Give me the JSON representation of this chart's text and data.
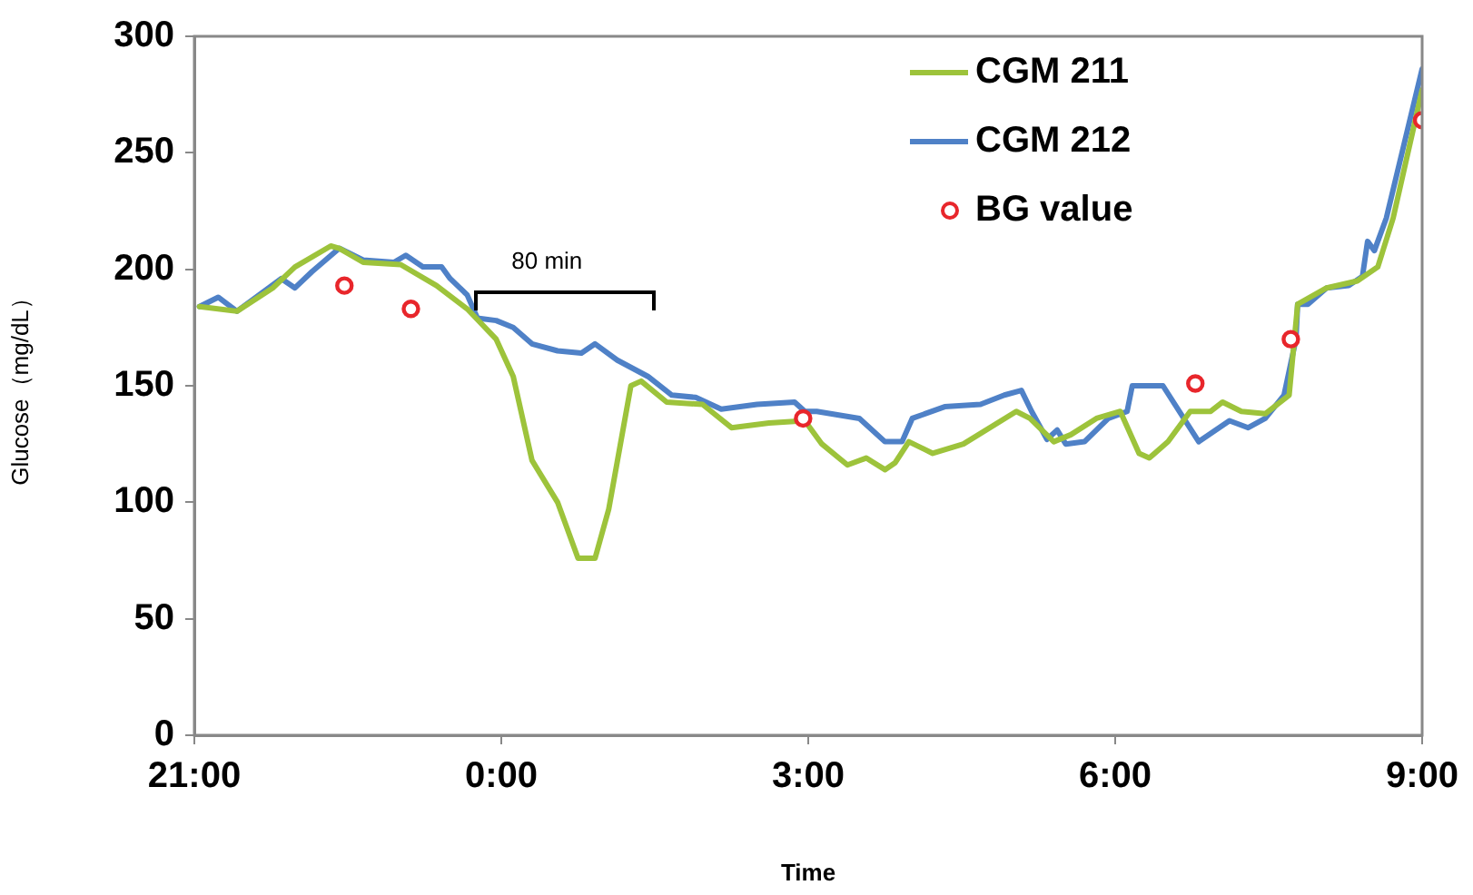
{
  "chart_data": {
    "type": "line",
    "xlabel": "Time",
    "ylabel": "Glucose（mg/dL）",
    "xlim": [
      "2000-01-01T21:00",
      "2000-01-02T09:00"
    ],
    "xticks": [
      {
        "value": "2000-01-01T21:00",
        "label": "21:00"
      },
      {
        "value": "2000-01-02T00:00",
        "label": "0:00"
      },
      {
        "value": "2000-01-02T03:00",
        "label": "3:00"
      },
      {
        "value": "2000-01-02T06:00",
        "label": "6:00"
      },
      {
        "value": "2000-01-02T09:00",
        "label": "9:00"
      }
    ],
    "ylim": [
      0,
      300
    ],
    "yticks": [
      0,
      50,
      100,
      150,
      200,
      250,
      300
    ],
    "grid": false,
    "legend": "top right",
    "line_style": "solid",
    "annotations": [
      "80 min"
    ],
    "series": [
      {
        "name": "CGM 211",
        "color": "#9dc33b",
        "marker": "none",
        "x": [
          "2000-01-01T21:03",
          "2000-01-01T21:25",
          "2000-01-01T21:46",
          "2000-01-01T21:59",
          "2000-01-01T22:20",
          "2000-01-01T22:25",
          "2000-01-01T22:39",
          "2000-01-01T23:01",
          "2000-01-01T23:22",
          "2000-01-01T23:40",
          "2000-01-01T23:57",
          "2000-01-02T00:07",
          "2000-01-02T00:18",
          "2000-01-02T00:33",
          "2000-01-02T00:45",
          "2000-01-02T00:55",
          "2000-01-02T01:03",
          "2000-01-02T01:16",
          "2000-01-02T01:22",
          "2000-01-02T01:37",
          "2000-01-02T01:58",
          "2000-01-02T02:15",
          "2000-01-02T02:37",
          "2000-01-02T02:58",
          "2000-01-02T03:08",
          "2000-01-02T03:23",
          "2000-01-02T03:34",
          "2000-01-02T03:45",
          "2000-01-02T03:51",
          "2000-01-02T03:59",
          "2000-01-02T04:13",
          "2000-01-02T04:31",
          "2000-01-02T05:02",
          "2000-01-02T05:10",
          "2000-01-02T05:24",
          "2000-01-02T05:34",
          "2000-01-02T05:49",
          "2000-01-02T06:03",
          "2000-01-02T06:14",
          "2000-01-02T06:20",
          "2000-01-02T06:31",
          "2000-01-02T06:44",
          "2000-01-02T06:56",
          "2000-01-02T07:03",
          "2000-01-02T07:14",
          "2000-01-02T07:28",
          "2000-01-02T07:42",
          "2000-01-02T07:47",
          "2000-01-02T08:04",
          "2000-01-02T08:22",
          "2000-01-02T08:34",
          "2000-01-02T08:43",
          "2000-01-02T09:00"
        ],
        "values": [
          184,
          182,
          192,
          201,
          210,
          209,
          203,
          202,
          193,
          183,
          170,
          154,
          118,
          100,
          76,
          76,
          97,
          150,
          152,
          143,
          142,
          132,
          134,
          135,
          125,
          116,
          119,
          114,
          117,
          126,
          121,
          125,
          139,
          136,
          126,
          129,
          136,
          139,
          121,
          119,
          126,
          139,
          139,
          143,
          139,
          138,
          146,
          185,
          192,
          195,
          201,
          222,
          277
        ]
      },
      {
        "name": "CGM 212",
        "color": "#4f81c7",
        "marker": "none",
        "x": [
          "2000-01-01T21:03",
          "2000-01-01T21:14",
          "2000-01-01T21:25",
          "2000-01-01T21:38",
          "2000-01-01T21:51",
          "2000-01-01T21:59",
          "2000-01-01T22:09",
          "2000-01-01T22:25",
          "2000-01-01T22:39",
          "2000-01-01T22:57",
          "2000-01-01T23:04",
          "2000-01-01T23:14",
          "2000-01-01T23:25",
          "2000-01-01T23:30",
          "2000-01-01T23:40",
          "2000-01-01T23:46",
          "2000-01-01T23:57",
          "2000-01-02T00:07",
          "2000-01-02T00:18",
          "2000-01-02T00:33",
          "2000-01-02T00:47",
          "2000-01-02T00:55",
          "2000-01-02T01:08",
          "2000-01-02T01:26",
          "2000-01-02T01:40",
          "2000-01-02T01:54",
          "2000-01-02T02:09",
          "2000-01-02T02:30",
          "2000-01-02T02:52",
          "2000-01-02T02:58",
          "2000-01-02T03:05",
          "2000-01-02T03:30",
          "2000-01-02T03:45",
          "2000-01-02T03:55",
          "2000-01-02T04:01",
          "2000-01-02T04:20",
          "2000-01-02T04:41",
          "2000-01-02T04:55",
          "2000-01-02T05:05",
          "2000-01-02T05:11",
          "2000-01-02T05:20",
          "2000-01-02T05:26",
          "2000-01-02T05:31",
          "2000-01-02T05:42",
          "2000-01-02T05:56",
          "2000-01-02T06:07",
          "2000-01-02T06:10",
          "2000-01-02T06:28",
          "2000-01-02T06:49",
          "2000-01-02T07:07",
          "2000-01-02T07:18",
          "2000-01-02T07:28",
          "2000-01-02T07:39",
          "2000-01-02T07:46",
          "2000-01-02T07:47",
          "2000-01-02T07:53",
          "2000-01-02T08:04",
          "2000-01-02T08:17",
          "2000-01-02T08:25",
          "2000-01-02T08:28",
          "2000-01-02T08:32",
          "2000-01-02T08:39",
          "2000-01-02T09:00"
        ],
        "values": [
          184,
          188,
          182,
          189,
          196,
          192,
          199,
          209,
          204,
          203,
          206,
          201,
          201,
          196,
          189,
          179,
          178,
          175,
          168,
          165,
          164,
          168,
          161,
          154,
          146,
          145,
          140,
          142,
          143,
          139,
          139,
          136,
          126,
          126,
          136,
          141,
          142,
          146,
          148,
          139,
          127,
          131,
          125,
          126,
          136,
          139,
          150,
          150,
          126,
          135,
          132,
          136,
          146,
          170,
          185,
          185,
          192,
          193,
          197,
          212,
          208,
          222,
          286
        ]
      },
      {
        "name": "BG value",
        "type": "scatter",
        "color": "#e8262b",
        "marker": "circle",
        "x": [
          "2000-01-01T22:28",
          "2000-01-01T23:07",
          "2000-01-02T02:57",
          "2000-01-02T06:47",
          "2000-01-02T07:43",
          "2000-01-02T09:00"
        ],
        "values": [
          193,
          183,
          136,
          151,
          170,
          264
        ]
      }
    ]
  }
}
